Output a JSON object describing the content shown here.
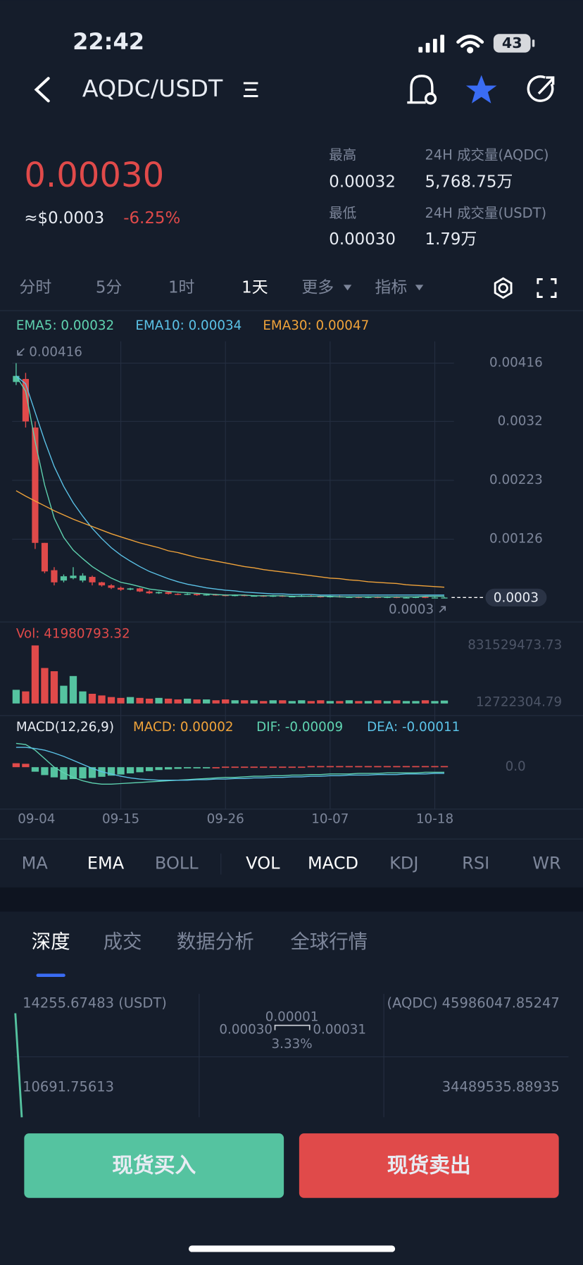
{
  "status_bar": {
    "time": "22:42",
    "battery": "43"
  },
  "header": {
    "pair": "AQDC/USDT"
  },
  "ticker": {
    "price": "0.00030",
    "usd": "≈$0.0003",
    "change": "-6.25%",
    "high_label": "最高",
    "high": "0.00032",
    "low_label": "最低",
    "low": "0.00030",
    "vol_base_label": "24H 成交量(AQDC)",
    "vol_base": "5,768.75万",
    "vol_quote_label": "24H 成交量(USDT)",
    "vol_quote": "1.79万"
  },
  "timeframes": {
    "items": [
      "分时",
      "5分",
      "1时",
      "1天",
      "更多",
      "指标"
    ],
    "active": 3
  },
  "chart_data": [
    {
      "type": "candlestick",
      "up_color": "#55c3a0",
      "down_color": "#e04a4a",
      "grid": true,
      "categories": [
        "09-04",
        null,
        null,
        null,
        null,
        null,
        null,
        null,
        null,
        null,
        null,
        "09-15",
        null,
        null,
        null,
        null,
        null,
        null,
        null,
        null,
        null,
        null,
        "09-26",
        null,
        null,
        null,
        null,
        null,
        null,
        null,
        null,
        null,
        null,
        "10-07",
        null,
        null,
        null,
        null,
        null,
        null,
        null,
        null,
        null,
        null,
        "10-18",
        null
      ],
      "open": [
        0.00385,
        0.0039,
        0.0031,
        0.0012,
        0.00075,
        0.00058,
        0.00062,
        0.00058,
        0.00064,
        0.00055,
        0.0005,
        0.00046,
        0.00043,
        0.00045,
        0.0004,
        0.00037,
        0.00039,
        0.00036,
        0.00035,
        0.00036,
        0.00034,
        0.00035,
        0.00034,
        0.00033,
        0.00034,
        0.00033,
        0.00033,
        0.00032,
        0.00033,
        0.00032,
        0.00032,
        0.00033,
        0.00032,
        0.00031,
        0.00032,
        0.00031,
        0.00031,
        0.0003,
        0.00031,
        0.0003,
        0.00031,
        0.0003,
        0.0003,
        0.00031,
        0.0003,
        0.0003
      ],
      "high": [
        0.00416,
        0.004,
        0.0032,
        0.0012,
        0.0008,
        0.00068,
        0.0008,
        0.0007,
        0.00066,
        0.00056,
        0.00052,
        0.00048,
        0.00046,
        0.00046,
        0.00042,
        0.0004,
        0.0004,
        0.00037,
        0.00037,
        0.00037,
        0.00036,
        0.00036,
        0.00035,
        0.00035,
        0.00035,
        0.00034,
        0.00034,
        0.00034,
        0.00034,
        0.00033,
        0.00034,
        0.00034,
        0.00033,
        0.00033,
        0.00033,
        0.00032,
        0.00032,
        0.00032,
        0.00032,
        0.00032,
        0.00032,
        0.00031,
        0.00032,
        0.00032,
        0.00031,
        0.00031
      ],
      "low": [
        0.0038,
        0.0031,
        0.0011,
        0.0007,
        0.0005,
        0.00055,
        0.0006,
        0.00055,
        0.0005,
        0.00048,
        0.00044,
        0.00041,
        0.00042,
        0.00039,
        0.00036,
        0.00036,
        0.00035,
        0.00034,
        0.00034,
        0.00033,
        0.00033,
        0.00033,
        0.00032,
        0.00032,
        0.00032,
        0.00032,
        0.00031,
        0.00031,
        0.00031,
        0.00031,
        0.00031,
        0.00031,
        0.0003,
        0.0003,
        0.0003,
        0.0003,
        0.00029,
        0.00029,
        0.00029,
        0.00029,
        0.00029,
        0.00029,
        0.00029,
        0.00029,
        0.00029,
        0.00029
      ],
      "close": [
        0.00395,
        0.0032,
        0.0012,
        0.00073,
        0.00055,
        0.00065,
        0.00066,
        0.00066,
        0.00055,
        0.0005,
        0.00046,
        0.00043,
        0.00045,
        0.0004,
        0.00037,
        0.00039,
        0.00036,
        0.00035,
        0.00036,
        0.00034,
        0.00035,
        0.00034,
        0.00033,
        0.00034,
        0.00033,
        0.00033,
        0.00032,
        0.00033,
        0.00032,
        0.00032,
        0.00033,
        0.00032,
        0.00031,
        0.00032,
        0.00031,
        0.00031,
        0.0003,
        0.00031,
        0.0003,
        0.00031,
        0.0003,
        0.0003,
        0.00031,
        0.0003,
        0.0003,
        0.0003
      ],
      "series": [
        {
          "name": "EMA5: 0.00032",
          "color": "#5fd3b0",
          "values": [
            0.00395,
            0.0037,
            0.00287,
            0.00215,
            0.00161,
            0.00129,
            0.00108,
            0.00094,
            0.00081,
            0.00071,
            0.00062,
            0.00055,
            0.00052,
            0.00048,
            0.00044,
            0.00042,
            0.0004,
            0.00039,
            0.00038,
            0.00037,
            0.00036,
            0.00035,
            0.00034,
            0.00034,
            0.00034,
            0.00033,
            0.00033,
            0.00033,
            0.00033,
            0.00032,
            0.00032,
            0.00032,
            0.00032,
            0.00032,
            0.00031,
            0.00031,
            0.00031,
            0.00031,
            0.00031,
            0.00031,
            0.00031,
            0.00031,
            0.00031,
            0.00032,
            0.00032,
            0.00032
          ]
        },
        {
          "name": "EMA10: 0.00034",
          "color": "#5bc2e7",
          "values": [
            0.00395,
            0.00382,
            0.00335,
            0.00288,
            0.00246,
            0.00213,
            0.00186,
            0.00164,
            0.00144,
            0.00127,
            0.00112,
            0.001,
            0.0009,
            0.00081,
            0.00073,
            0.00067,
            0.00061,
            0.00056,
            0.00052,
            0.00049,
            0.00046,
            0.00044,
            0.00042,
            0.00041,
            0.00039,
            0.00038,
            0.00037,
            0.00036,
            0.00036,
            0.00035,
            0.00035,
            0.00035,
            0.00034,
            0.00034,
            0.00034,
            0.00034,
            0.00034,
            0.00034,
            0.00034,
            0.00034,
            0.00034,
            0.00034,
            0.00034,
            0.00034,
            0.00034,
            0.00034
          ]
        },
        {
          "name": "EMA30: 0.00047",
          "color": "#f0a33a",
          "values": [
            0.00206,
            0.00197,
            0.00189,
            0.00181,
            0.00173,
            0.00166,
            0.00159,
            0.00153,
            0.00147,
            0.00141,
            0.00135,
            0.0013,
            0.00125,
            0.0012,
            0.00116,
            0.00112,
            0.00107,
            0.00104,
            0.001,
            0.00096,
            0.00093,
            0.0009,
            0.00087,
            0.00084,
            0.00081,
            0.00079,
            0.00076,
            0.00074,
            0.00072,
            0.0007,
            0.00068,
            0.00066,
            0.00064,
            0.00062,
            0.00061,
            0.00059,
            0.00058,
            0.00056,
            0.00055,
            0.00054,
            0.00053,
            0.00051,
            0.0005,
            0.00049,
            0.00048,
            0.00047
          ]
        }
      ],
      "ylim": [
        -9e-05,
        0.00452
      ],
      "yticks": [
        0.00416,
        0.0032,
        0.00223,
        0.00126
      ],
      "max_marker": 0.00416,
      "min_marker": 0.0003,
      "last_price": 0.0003
    },
    {
      "type": "bar",
      "title": "Vol: 41980793.32",
      "values": [
        196000000,
        173000000,
        831000000,
        508000000,
        462000000,
        254000000,
        393000000,
        173000000,
        139000000,
        115000000,
        92000000,
        80000000,
        92000000,
        80000000,
        69000000,
        80000000,
        69000000,
        58000000,
        69000000,
        58000000,
        58000000,
        46000000,
        58000000,
        46000000,
        46000000,
        46000000,
        35000000,
        46000000,
        46000000,
        35000000,
        46000000,
        35000000,
        46000000,
        35000000,
        35000000,
        46000000,
        35000000,
        35000000,
        46000000,
        35000000,
        46000000,
        35000000,
        35000000,
        46000000,
        35000000,
        41980793.32
      ],
      "ylim": [
        0,
        831529473.73
      ],
      "yticks": [
        831529473.73,
        12722304.79
      ]
    },
    {
      "type": "macd",
      "title": "MACD(12,26,9)",
      "macd_label": "MACD: 0.00002",
      "values": [
        7e-05,
        6e-05,
        -8e-05,
        -0.00014,
        -0.00018,
        -0.00022,
        -0.00021,
        -0.0002,
        -0.00019,
        -0.00017,
        -0.00015,
        -0.00013,
        -0.00011,
        -9e-05,
        -7e-05,
        -5e-05,
        -4e-05,
        -3e-05,
        -2e-05,
        -1e-05,
        -1e-05,
        0,
        1e-05,
        1e-05,
        1e-05,
        1e-05,
        1e-05,
        1e-05,
        1e-05,
        1e-05,
        1e-05,
        2e-05,
        2e-05,
        2e-05,
        2e-05,
        2e-05,
        2e-05,
        2e-05,
        2e-05,
        2e-05,
        2e-05,
        2e-05,
        2e-05,
        2e-05,
        2e-05,
        2e-05
      ],
      "series": [
        {
          "name": "DIF: -0.00009",
          "color": "#5fd3b0",
          "values": [
            0.00042,
            0.0004,
            0.0003,
            0.00015,
            0,
            -0.0001,
            -0.00018,
            -0.00024,
            -0.00028,
            -0.0003,
            -0.0003,
            -0.00029,
            -0.00028,
            -0.00027,
            -0.00026,
            -0.00025,
            -0.00024,
            -0.00023,
            -0.00022,
            -0.00021,
            -0.0002,
            -0.00019,
            -0.00018,
            -0.00018,
            -0.00017,
            -0.00016,
            -0.00016,
            -0.00015,
            -0.00015,
            -0.00014,
            -0.00014,
            -0.00013,
            -0.00013,
            -0.00012,
            -0.00012,
            -0.00012,
            -0.00011,
            -0.00011,
            -0.00011,
            -0.0001,
            -0.0001,
            -0.0001,
            -0.0001,
            -9e-05,
            -9e-05,
            -9e-05
          ]
        },
        {
          "name": "DEA: -0.00011",
          "color": "#5bc2e7",
          "values": [
            0.00035,
            0.00035,
            0.00033,
            0.0003,
            0.00025,
            0.00019,
            0.00012,
            5e-05,
            -2e-05,
            -8e-05,
            -0.00012,
            -0.00016,
            -0.00019,
            -0.00021,
            -0.00022,
            -0.00023,
            -0.00023,
            -0.00023,
            -0.00023,
            -0.00022,
            -0.00022,
            -0.00021,
            -0.00021,
            -0.0002,
            -0.0002,
            -0.00019,
            -0.00019,
            -0.00018,
            -0.00018,
            -0.00017,
            -0.00017,
            -0.00016,
            -0.00016,
            -0.00015,
            -0.00015,
            -0.00014,
            -0.00014,
            -0.00014,
            -0.00013,
            -0.00013,
            -0.00013,
            -0.00012,
            -0.00012,
            -0.00012,
            -0.00011,
            -0.00011
          ]
        }
      ],
      "ylim": [
        -0.0007,
        0.00087
      ],
      "yticks": [
        {
          "value": 0,
          "label": "0.0"
        }
      ]
    }
  ],
  "indicators": {
    "items": [
      "MA",
      "EMA",
      "BOLL",
      "VOL",
      "MACD",
      "KDJ",
      "RSI",
      "WR"
    ],
    "active": [
      1,
      3,
      4
    ]
  },
  "tabs": {
    "items": [
      "深度",
      "成交",
      "数据分析",
      "全球行情"
    ],
    "active": 0
  },
  "depth": {
    "buy_total": "14255.67483 (USDT)",
    "sell_total": "(AQDC) 45986047.85247",
    "spread": "0.00001",
    "bid": "0.00030",
    "ask": "0.00031",
    "spread_pct": "3.33%",
    "buy_mid": "10691.75613",
    "sell_mid": "34489535.88935"
  },
  "buttons": {
    "buy": "现货买入",
    "sell": "现货卖出"
  }
}
